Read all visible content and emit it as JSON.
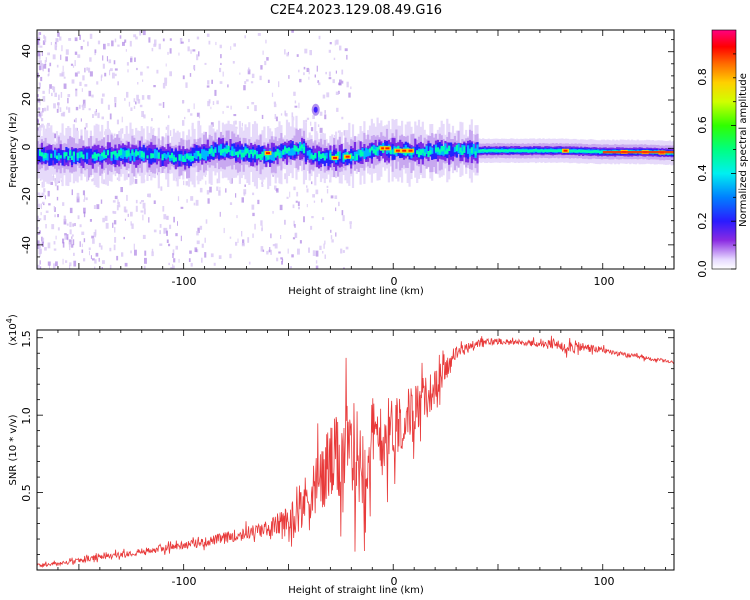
{
  "chart_data": [
    {
      "type": "heatmap",
      "title": "C2E4.2023.129.08.49.G16",
      "xlabel": "Height of straight line (km)",
      "ylabel": "Frequency (Hz)",
      "xlim": [
        -170,
        134
      ],
      "ylim": [
        -50,
        49
      ],
      "xticks": [
        "-100",
        "0",
        "100"
      ],
      "yticks": [
        "-40",
        "-20",
        "0",
        "20",
        "40"
      ],
      "colorbar": {
        "label": "Normalized spectral amplitude",
        "range": [
          0,
          1
        ],
        "ticks": [
          "0.0",
          "0.2",
          "0.4",
          "0.6",
          "0.8"
        ]
      },
      "ridge": [
        {
          "x": -165,
          "y": -3
        },
        {
          "x": -140,
          "y": -3
        },
        {
          "x": -120,
          "y": -2.5
        },
        {
          "x": -100,
          "y": -4
        },
        {
          "x": -90,
          "y": -2
        },
        {
          "x": -80,
          "y": -1
        },
        {
          "x": -70,
          "y": -2
        },
        {
          "x": -60,
          "y": -3
        },
        {
          "x": -50,
          "y": -1
        },
        {
          "x": -44,
          "y": 0
        },
        {
          "x": -40,
          "y": -3
        },
        {
          "x": -30,
          "y": -4
        },
        {
          "x": -20,
          "y": -3
        },
        {
          "x": -10,
          "y": -1
        },
        {
          "x": -5,
          "y": 0
        },
        {
          "x": 0,
          "y": -1
        },
        {
          "x": 10,
          "y": -1.5
        },
        {
          "x": 30,
          "y": -1
        },
        {
          "x": 60,
          "y": -1
        },
        {
          "x": 80,
          "y": -1
        },
        {
          "x": 100,
          "y": -1.5
        },
        {
          "x": 120,
          "y": -1.5
        },
        {
          "x": 134,
          "y": -2
        }
      ]
    },
    {
      "type": "line",
      "xlabel": "Height of straight line (km)",
      "ylabel": "SNR (10 * v/v)",
      "y_multiplier": "(x10",
      "y_multiplier_exp": "4",
      "xlim": [
        -170,
        134
      ],
      "ylim": [
        0,
        1.55
      ],
      "xticks": [
        "-100",
        "0",
        "100"
      ],
      "yticks": [
        "0.5",
        "1.0",
        "1.5"
      ],
      "color": "#e83a3a",
      "series": [
        {
          "values": [
            {
              "x": -170,
              "y": 0.03
            },
            {
              "x": -160,
              "y": 0.04
            },
            {
              "x": -150,
              "y": 0.06
            },
            {
              "x": -140,
              "y": 0.08
            },
            {
              "x": -130,
              "y": 0.1
            },
            {
              "x": -120,
              "y": 0.12
            },
            {
              "x": -110,
              "y": 0.14
            },
            {
              "x": -100,
              "y": 0.16
            },
            {
              "x": -90,
              "y": 0.18
            },
            {
              "x": -80,
              "y": 0.21
            },
            {
              "x": -70,
              "y": 0.24
            },
            {
              "x": -60,
              "y": 0.27
            },
            {
              "x": -50,
              "y": 0.32
            },
            {
              "x": -45,
              "y": 0.38
            },
            {
              "x": -40,
              "y": 0.5
            },
            {
              "x": -35,
              "y": 0.58
            },
            {
              "x": -30,
              "y": 0.68
            },
            {
              "x": -25,
              "y": 0.72
            },
            {
              "x": -20,
              "y": 0.78
            },
            {
              "x": -15,
              "y": 0.7
            },
            {
              "x": -10,
              "y": 0.8
            },
            {
              "x": -5,
              "y": 0.86
            },
            {
              "x": 0,
              "y": 0.92
            },
            {
              "x": 5,
              "y": 0.98
            },
            {
              "x": 10,
              "y": 1.04
            },
            {
              "x": 15,
              "y": 1.1
            },
            {
              "x": 20,
              "y": 1.18
            },
            {
              "x": 25,
              "y": 1.3
            },
            {
              "x": 30,
              "y": 1.4
            },
            {
              "x": 40,
              "y": 1.46
            },
            {
              "x": 50,
              "y": 1.48
            },
            {
              "x": 60,
              "y": 1.47
            },
            {
              "x": 70,
              "y": 1.46
            },
            {
              "x": 80,
              "y": 1.45
            },
            {
              "x": 90,
              "y": 1.44
            },
            {
              "x": 100,
              "y": 1.42
            },
            {
              "x": 110,
              "y": 1.39
            },
            {
              "x": 120,
              "y": 1.37
            },
            {
              "x": 134,
              "y": 1.34
            }
          ],
          "noise_envelope": [
            {
              "x": -170,
              "y": 0.02
            },
            {
              "x": -100,
              "y": 0.04
            },
            {
              "x": -60,
              "y": 0.08
            },
            {
              "x": -45,
              "y": 0.22
            },
            {
              "x": -30,
              "y": 0.45
            },
            {
              "x": -20,
              "y": 0.55
            },
            {
              "x": -10,
              "y": 0.5
            },
            {
              "x": 0,
              "y": 0.35
            },
            {
              "x": 15,
              "y": 0.25
            },
            {
              "x": 30,
              "y": 0.07
            },
            {
              "x": 60,
              "y": 0.02
            },
            {
              "x": 85,
              "y": 0.07
            },
            {
              "x": 100,
              "y": 0.03
            },
            {
              "x": 134,
              "y": 0.015
            }
          ]
        }
      ]
    }
  ]
}
